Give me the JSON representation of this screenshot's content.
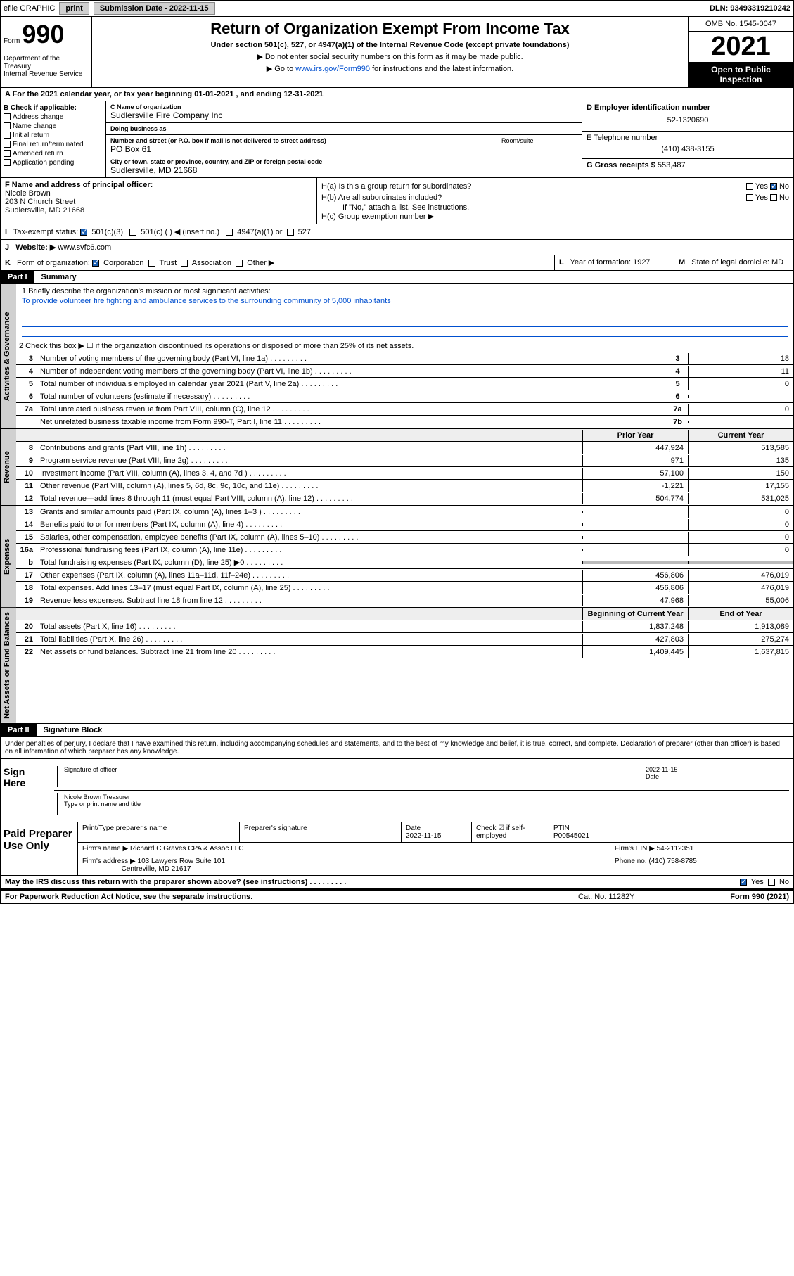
{
  "topbar": {
    "efile": "efile GRAPHIC",
    "print": "print",
    "sub_label": "Submission Date - 2022-11-15",
    "dln": "DLN: 93493319210242"
  },
  "header": {
    "form_label": "Form",
    "form_num": "990",
    "dept": "Department of the Treasury\nInternal Revenue Service",
    "title": "Return of Organization Exempt From Income Tax",
    "subtitle": "Under section 501(c), 527, or 4947(a)(1) of the Internal Revenue Code (except private foundations)",
    "note1": "▶ Do not enter social security numbers on this form as it may be made public.",
    "note2_pre": "▶ Go to ",
    "note2_link": "www.irs.gov/Form990",
    "note2_post": " for instructions and the latest information.",
    "omb": "OMB No. 1545-0047",
    "year": "2021",
    "open": "Open to Public Inspection"
  },
  "row_a": "A For the 2021 calendar year, or tax year beginning 01-01-2021   , and ending 12-31-2021",
  "col_b": {
    "hdr": "B Check if applicable:",
    "items": [
      "Address change",
      "Name change",
      "Initial return",
      "Final return/terminated",
      "Amended return",
      "Application pending"
    ]
  },
  "col_c": {
    "name_label": "C Name of organization",
    "name": "Sudlersville Fire Company Inc",
    "dba_label": "Doing business as",
    "dba": "",
    "addr_label": "Number and street (or P.O. box if mail is not delivered to street address)",
    "addr": "PO Box 61",
    "room_label": "Room/suite",
    "city_label": "City or town, state or province, country, and ZIP or foreign postal code",
    "city": "Sudlersville, MD  21668"
  },
  "col_d": {
    "ein_label": "D Employer identification number",
    "ein": "52-1320690",
    "phone_label": "E Telephone number",
    "phone": "(410) 438-3155",
    "gross_label": "G Gross receipts $",
    "gross": "553,487"
  },
  "f_block": {
    "label": "F Name and address of principal officer:",
    "name": "Nicole Brown",
    "addr1": "203 N Church Street",
    "addr2": "Sudlersville, MD  21668"
  },
  "h_block": {
    "ha": "H(a)  Is this a group return for subordinates?",
    "hb": "H(b)  Are all subordinates included?",
    "hb_note": "If \"No,\" attach a list. See instructions.",
    "hc": "H(c)  Group exemption number ▶",
    "yes": "Yes",
    "no": "No"
  },
  "row_i": {
    "label": "I",
    "text": "Tax-exempt status:",
    "opts": [
      "501(c)(3)",
      "501(c) (  ) ◀ (insert no.)",
      "4947(a)(1) or",
      "527"
    ]
  },
  "row_j": {
    "label": "J",
    "text": "Website: ▶",
    "val": "www.svfc6.com"
  },
  "row_k": {
    "label": "K",
    "text": "Form of organization:",
    "opts": [
      "Corporation",
      "Trust",
      "Association",
      "Other ▶"
    ]
  },
  "row_l": {
    "label": "L",
    "text": "Year of formation:",
    "val": "1927"
  },
  "row_m": {
    "label": "M",
    "text": "State of legal domicile:",
    "val": "MD"
  },
  "part1": {
    "hdr": "Part I",
    "title": "Summary",
    "mission_label": "1  Briefly describe the organization's mission or most significant activities:",
    "mission": "To provide volunteer fire fighting and ambulance services to the surrounding community of 5,000 inhabitants",
    "line2": "2   Check this box ▶ ☐  if the organization discontinued its operations or disposed of more than 25% of its net assets.",
    "gov_lines": [
      {
        "n": "3",
        "t": "Number of voting members of the governing body (Part VI, line 1a)",
        "box": "3",
        "v": "18"
      },
      {
        "n": "4",
        "t": "Number of independent voting members of the governing body (Part VI, line 1b)",
        "box": "4",
        "v": "11"
      },
      {
        "n": "5",
        "t": "Total number of individuals employed in calendar year 2021 (Part V, line 2a)",
        "box": "5",
        "v": "0"
      },
      {
        "n": "6",
        "t": "Total number of volunteers (estimate if necessary)",
        "box": "6",
        "v": ""
      },
      {
        "n": "7a",
        "t": "Total unrelated business revenue from Part VIII, column (C), line 12",
        "box": "7a",
        "v": "0"
      },
      {
        "n": "",
        "t": "Net unrelated business taxable income from Form 990-T, Part I, line 11",
        "box": "7b",
        "v": ""
      }
    ],
    "col_hdr_prior": "Prior Year",
    "col_hdr_current": "Current Year",
    "rev_lines": [
      {
        "n": "8",
        "t": "Contributions and grants (Part VIII, line 1h)",
        "p": "447,924",
        "c": "513,585"
      },
      {
        "n": "9",
        "t": "Program service revenue (Part VIII, line 2g)",
        "p": "971",
        "c": "135"
      },
      {
        "n": "10",
        "t": "Investment income (Part VIII, column (A), lines 3, 4, and 7d )",
        "p": "57,100",
        "c": "150"
      },
      {
        "n": "11",
        "t": "Other revenue (Part VIII, column (A), lines 5, 6d, 8c, 9c, 10c, and 11e)",
        "p": "-1,221",
        "c": "17,155"
      },
      {
        "n": "12",
        "t": "Total revenue—add lines 8 through 11 (must equal Part VIII, column (A), line 12)",
        "p": "504,774",
        "c": "531,025"
      }
    ],
    "exp_lines": [
      {
        "n": "13",
        "t": "Grants and similar amounts paid (Part IX, column (A), lines 1–3 )",
        "p": "",
        "c": "0"
      },
      {
        "n": "14",
        "t": "Benefits paid to or for members (Part IX, column (A), line 4)",
        "p": "",
        "c": "0"
      },
      {
        "n": "15",
        "t": "Salaries, other compensation, employee benefits (Part IX, column (A), lines 5–10)",
        "p": "",
        "c": "0"
      },
      {
        "n": "16a",
        "t": "Professional fundraising fees (Part IX, column (A), line 11e)",
        "p": "",
        "c": "0"
      },
      {
        "n": "b",
        "t": "Total fundraising expenses (Part IX, column (D), line 25) ▶0",
        "p": "shade",
        "c": "shade"
      },
      {
        "n": "17",
        "t": "Other expenses (Part IX, column (A), lines 11a–11d, 11f–24e)",
        "p": "456,806",
        "c": "476,019"
      },
      {
        "n": "18",
        "t": "Total expenses. Add lines 13–17 (must equal Part IX, column (A), line 25)",
        "p": "456,806",
        "c": "476,019"
      },
      {
        "n": "19",
        "t": "Revenue less expenses. Subtract line 18 from line 12",
        "p": "47,968",
        "c": "55,006"
      }
    ],
    "col_hdr_beg": "Beginning of Current Year",
    "col_hdr_end": "End of Year",
    "net_lines": [
      {
        "n": "20",
        "t": "Total assets (Part X, line 16)",
        "p": "1,837,248",
        "c": "1,913,089"
      },
      {
        "n": "21",
        "t": "Total liabilities (Part X, line 26)",
        "p": "427,803",
        "c": "275,274"
      },
      {
        "n": "22",
        "t": "Net assets or fund balances. Subtract line 21 from line 20",
        "p": "1,409,445",
        "c": "1,637,815"
      }
    ]
  },
  "vert_labels": {
    "gov": "Activities & Governance",
    "rev": "Revenue",
    "exp": "Expenses",
    "net": "Net Assets or Fund Balances"
  },
  "part2": {
    "hdr": "Part II",
    "title": "Signature Block",
    "perjury": "Under penalties of perjury, I declare that I have examined this return, including accompanying schedules and statements, and to the best of my knowledge and belief, it is true, correct, and complete. Declaration of preparer (other than officer) is based on all information of which preparer has any knowledge."
  },
  "sign": {
    "label": "Sign Here",
    "sig_label": "Signature of officer",
    "date_label": "Date",
    "date": "2022-11-15",
    "name_label": "Type or print name and title",
    "name": "Nicole Brown  Treasurer"
  },
  "paid": {
    "label": "Paid Preparer Use Only",
    "r1": {
      "c1_label": "Print/Type preparer's name",
      "c2_label": "Preparer's signature",
      "c3_label": "Date",
      "c3_val": "2022-11-15",
      "c4_label": "Check ☑ if self-employed",
      "c5_label": "PTIN",
      "c5_val": "P00545021"
    },
    "r2": {
      "c1_label": "Firm's name    ▶",
      "c1_val": "Richard C Graves CPA & Assoc LLC",
      "c2_label": "Firm's EIN ▶",
      "c2_val": "54-2112351"
    },
    "r3": {
      "c1_label": "Firm's address ▶",
      "c1_val": "103 Lawyers Row Suite 101",
      "c1_val2": "Centreville, MD  21617",
      "c2_label": "Phone no.",
      "c2_val": "(410) 758-8785"
    }
  },
  "discuss": {
    "text": "May the IRS discuss this return with the preparer shown above? (see instructions)",
    "yes": "Yes",
    "no": "No"
  },
  "footer": {
    "l": "For Paperwork Reduction Act Notice, see the separate instructions.",
    "m": "Cat. No. 11282Y",
    "r": "Form 990 (2021)"
  }
}
